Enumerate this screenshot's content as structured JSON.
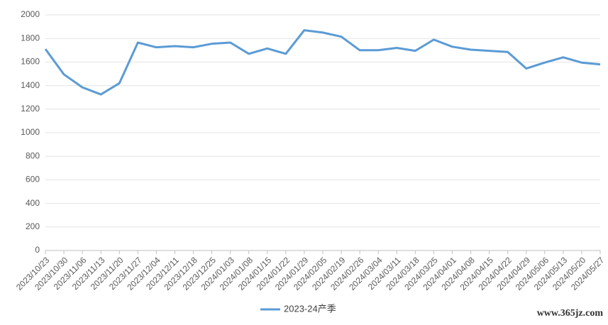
{
  "chart_data": {
    "type": "line",
    "categories": [
      "2023/10/23",
      "2023/10/30",
      "2023/11/06",
      "2023/11/13",
      "2023/11/20",
      "2023/11/27",
      "2023/12/04",
      "2023/12/11",
      "2023/12/18",
      "2023/12/25",
      "2024/01/03",
      "2024/01/08",
      "2024/01/15",
      "2024/01/22",
      "2024/01/29",
      "2024/02/05",
      "2024/02/19",
      "2024/02/26",
      "2024/03/04",
      "2024/03/11",
      "2024/03/18",
      "2024/03/25",
      "2024/04/01",
      "2024/04/08",
      "2024/04/15",
      "2024/04/22",
      "2024/04/29",
      "2024/05/06",
      "2024/05/13",
      "2024/05/20",
      "2024/05/27"
    ],
    "series": [
      {
        "name": "2023-24产季",
        "color": "#5b9bd5",
        "values": [
          1710,
          1495,
          1385,
          1325,
          1420,
          1765,
          1725,
          1735,
          1725,
          1755,
          1765,
          1670,
          1715,
          1670,
          1870,
          1850,
          1815,
          1700,
          1700,
          1720,
          1695,
          1790,
          1730,
          1705,
          1695,
          1685,
          1545,
          1595,
          1640,
          1595,
          1580
        ]
      }
    ],
    "ylim": [
      0,
      2000
    ],
    "yticks": [
      0,
      200,
      400,
      600,
      800,
      1000,
      1200,
      1400,
      1600,
      1800,
      2000
    ],
    "grid": true,
    "legend": "bottom",
    "watermark": "www.365jz.com"
  }
}
